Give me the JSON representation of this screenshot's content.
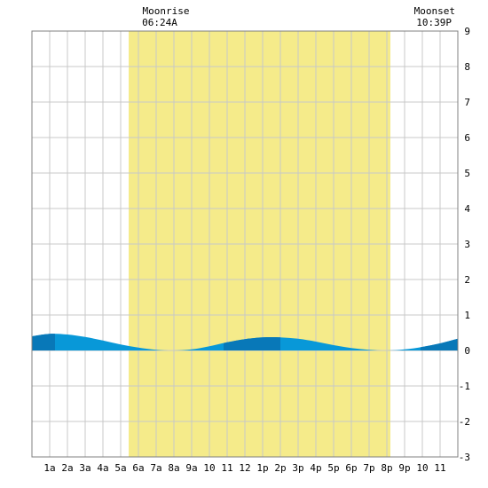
{
  "chart_data": {
    "type": "area",
    "title": "",
    "xlabel": "",
    "ylabel": "",
    "x_ticks": [
      "1a",
      "2a",
      "3a",
      "4a",
      "5a",
      "6a",
      "7a",
      "8a",
      "9a",
      "10",
      "11",
      "12",
      "1p",
      "2p",
      "3p",
      "4p",
      "5p",
      "6p",
      "7p",
      "8p",
      "9p",
      "10",
      "11"
    ],
    "x_range_hours": [
      0,
      24
    ],
    "ylim": [
      -3,
      9
    ],
    "y_ticks": [
      -3,
      -2,
      -1,
      0,
      1,
      2,
      3,
      4,
      5,
      6,
      7,
      8,
      9
    ],
    "grid": true,
    "moon": {
      "rise_label": "Moonrise",
      "rise_time": "06:24A",
      "set_label": "Moonset",
      "set_time": "10:39P"
    },
    "shaded_hours": [
      5.45,
      20.2
    ],
    "tide_series": {
      "name": "",
      "hours": [
        0,
        1,
        2,
        3,
        4,
        5,
        6,
        7,
        8,
        9,
        10,
        11,
        12,
        13,
        14,
        15,
        16,
        17,
        18,
        19,
        20,
        21,
        22,
        23,
        24
      ],
      "values": [
        0.4,
        0.47,
        0.45,
        0.38,
        0.28,
        0.17,
        0.08,
        0.02,
        0.0,
        0.03,
        0.12,
        0.23,
        0.32,
        0.37,
        0.37,
        0.33,
        0.25,
        0.15,
        0.07,
        0.02,
        0.0,
        0.03,
        0.1,
        0.2,
        0.33
      ]
    },
    "colors": {
      "shade": "#f5eb8a",
      "grid": "#c8c8c8",
      "frame": "#808080",
      "tide_light": "#0898d8",
      "tide_dark": "#0878b8"
    }
  }
}
